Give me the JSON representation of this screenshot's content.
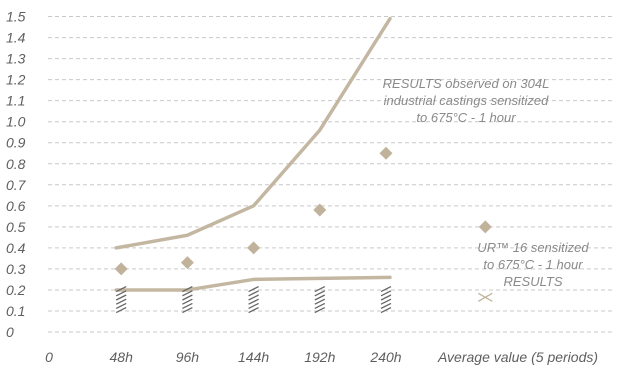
{
  "chart_data": {
    "type": "line",
    "categories": [
      "0",
      "48h",
      "96h",
      "144h",
      "192h",
      "240h",
      "Average value (5 periods)"
    ],
    "x_positions": [
      0,
      1,
      2,
      3,
      4,
      5,
      6.5
    ],
    "ylim": [
      0,
      1.5
    ],
    "yticks": [
      "0",
      "0.1",
      "0.2",
      "0.3",
      "0.4",
      "0.5",
      "0.6",
      "0.7",
      "0.8",
      "0.9",
      "1.0",
      "1.1",
      "1.2",
      "1.3",
      "1.4",
      "1.5"
    ],
    "grid": "horizontal dashed",
    "series": [
      {
        "kind": "line",
        "x": [
          1,
          2,
          3,
          4,
          5
        ],
        "values": [
          0.4,
          0.46,
          0.6,
          0.96,
          1.49
        ]
      },
      {
        "kind": "line",
        "x": [
          1,
          2,
          3,
          4,
          5
        ],
        "values": [
          0.2,
          0.2,
          0.25,
          0.255,
          0.26
        ]
      },
      {
        "kind": "diamond",
        "x": [
          1,
          2,
          3,
          4,
          5,
          6.5
        ],
        "values": [
          0.3,
          0.33,
          0.4,
          0.58,
          0.85,
          0.5
        ]
      },
      {
        "kind": "hatch",
        "x": [
          1,
          2,
          3,
          4,
          5
        ],
        "values": [
          0.185,
          0.185,
          0.185,
          0.185,
          0.185
        ]
      },
      {
        "kind": "cross",
        "x": [
          6.5
        ],
        "values": [
          0.165
        ]
      }
    ],
    "annotations": [
      {
        "lines": [
          "RESULTS observed on 304L",
          "industrial castings sensitized",
          "to 675°C - 1 hour"
        ]
      },
      {
        "lines": [
          "UR™ 16 sensitized",
          "to 675°C - 1 hour",
          "RESULTS"
        ]
      }
    ],
    "colors": {
      "line": "#c4b7a2",
      "marker": "#c1b39b",
      "hatch": "#666666",
      "grid": "#c9c9c9",
      "text": "#5f5f5f",
      "annotation": "#8a8a8a"
    }
  }
}
